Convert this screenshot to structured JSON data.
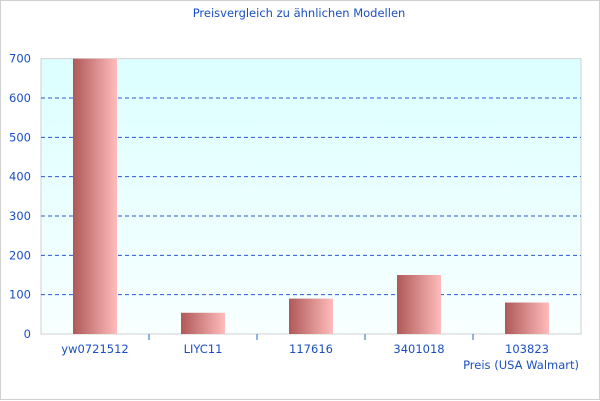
{
  "chart_data": {
    "type": "bar",
    "title": "Preisvergleich zu ähnlichen Modellen",
    "categories": [
      "yw0721512",
      "LIYC11",
      "117616",
      "3401018",
      "103823"
    ],
    "series": [
      {
        "name": "Preis (USA Walmart)",
        "values": [
          700,
          54,
          90,
          150,
          80
        ]
      }
    ],
    "xlabel": "",
    "ylabel": "",
    "ylim": [
      0,
      700
    ],
    "yticks": [
      0,
      100,
      200,
      300,
      400,
      500,
      600,
      700
    ],
    "grid": true,
    "legend": "bottom-right",
    "colors": {
      "bar_dark": "#b05858",
      "bar_light": "#ffbcbc",
      "text": "#1a4fc4",
      "grid": "#2a5ad0",
      "plot_top": "#dcffff",
      "plot_bottom": "#f8ffff"
    }
  }
}
